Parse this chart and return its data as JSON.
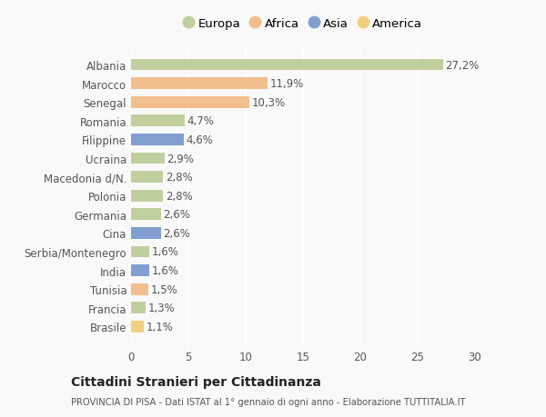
{
  "categories": [
    "Albania",
    "Marocco",
    "Senegal",
    "Romania",
    "Filippine",
    "Ucraina",
    "Macedonia d/N.",
    "Polonia",
    "Germania",
    "Cina",
    "Serbia/Montenegro",
    "India",
    "Tunisia",
    "Francia",
    "Brasile"
  ],
  "values": [
    27.2,
    11.9,
    10.3,
    4.7,
    4.6,
    2.9,
    2.8,
    2.8,
    2.6,
    2.6,
    1.6,
    1.6,
    1.5,
    1.3,
    1.1
  ],
  "labels": [
    "27,2%",
    "11,9%",
    "10,3%",
    "4,7%",
    "4,6%",
    "2,9%",
    "2,8%",
    "2,8%",
    "2,6%",
    "2,6%",
    "1,6%",
    "1,6%",
    "1,5%",
    "1,3%",
    "1,1%"
  ],
  "colors": [
    "#b5c98e",
    "#f0b47a",
    "#f0b47a",
    "#b5c98e",
    "#6b8fc9",
    "#b5c98e",
    "#b5c98e",
    "#b5c98e",
    "#b5c98e",
    "#6b8fc9",
    "#b5c98e",
    "#6b8fc9",
    "#f0b47a",
    "#b5c98e",
    "#f0c96e"
  ],
  "legend_labels": [
    "Europa",
    "Africa",
    "Asia",
    "America"
  ],
  "legend_colors": [
    "#b5c98e",
    "#f0b47a",
    "#6b8fc9",
    "#f0c96e"
  ],
  "xlim": [
    0,
    30
  ],
  "xticks": [
    0,
    5,
    10,
    15,
    20,
    25,
    30
  ],
  "title_main": "Cittadini Stranieri per Cittadinanza",
  "title_sub": "PROVINCIA DI PISA - Dati ISTAT al 1° gennaio di ogni anno - Elaborazione TUTTITALIA.IT",
  "background_color": "#f9f9f9",
  "bar_height": 0.62,
  "label_fontsize": 8.5,
  "tick_fontsize": 8.5,
  "legend_fontsize": 9.5
}
